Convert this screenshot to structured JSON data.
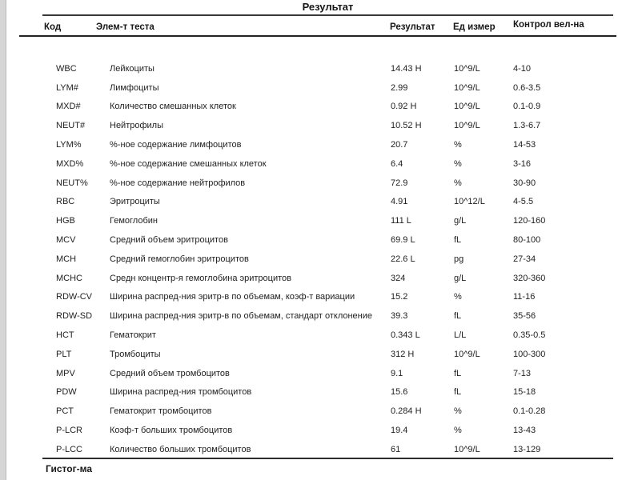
{
  "page": {
    "title": "Результат",
    "footer_section_title": "Гистог-ма"
  },
  "colors": {
    "page_bg": "#ffffff",
    "edge_strip": "#d6d6d6",
    "text": "#222222",
    "rule": "#2d2d2d"
  },
  "table": {
    "headers": {
      "code": "Код",
      "name": "Элем-т теста",
      "result": "Результат",
      "unit": "Ед измер",
      "range": "Контрол вел-на"
    },
    "rows": [
      {
        "code": "WBC",
        "name": "Лейкоциты",
        "result": "14.43 H",
        "unit": "10^9/L",
        "range": "4-10"
      },
      {
        "code": "LYM#",
        "name": "Лимфоциты",
        "result": "2.99",
        "unit": "10^9/L",
        "range": "0.6-3.5"
      },
      {
        "code": "MXD#",
        "name": "Количество смешанных клеток",
        "result": "0.92 H",
        "unit": "10^9/L",
        "range": "0.1-0.9"
      },
      {
        "code": "NEUT#",
        "name": "Нейтрофилы",
        "result": "10.52 H",
        "unit": "10^9/L",
        "range": "1.3-6.7"
      },
      {
        "code": "LYM%",
        "name": "%-ное содержание лимфоцитов",
        "result": "20.7",
        "unit": "%",
        "range": "14-53"
      },
      {
        "code": "MXD%",
        "name": "%-ное содержание смешанных клеток",
        "result": "6.4",
        "unit": "%",
        "range": "3-16"
      },
      {
        "code": "NEUT%",
        "name": "%-ное содержание нейтрофилов",
        "result": "72.9",
        "unit": "%",
        "range": "30-90"
      },
      {
        "code": "RBC",
        "name": "Эритроциты",
        "result": "4.91",
        "unit": "10^12/L",
        "range": "4-5.5"
      },
      {
        "code": "HGB",
        "name": "Гемоглобин",
        "result": "111 L",
        "unit": "g/L",
        "range": "120-160"
      },
      {
        "code": "MCV",
        "name": "Средний объем эритроцитов",
        "result": "69.9 L",
        "unit": "fL",
        "range": "80-100"
      },
      {
        "code": "MCH",
        "name": "Средний гемоглобин эритроцитов",
        "result": "22.6 L",
        "unit": "pg",
        "range": "27-34"
      },
      {
        "code": "MCHC",
        "name": "Средн концентр-я гемоглобина эритроцитов",
        "result": "324",
        "unit": "g/L",
        "range": "320-360"
      },
      {
        "code": "RDW-CV",
        "name": "Ширина распред-ния эритр-в по объемам, коэф-т вариации",
        "result": "15.2",
        "unit": "%",
        "range": "11-16"
      },
      {
        "code": "RDW-SD",
        "name": "Ширина распред-ния эритр-в по объемам, стандарт отклонение",
        "result": "39.3",
        "unit": "fL",
        "range": "35-56"
      },
      {
        "code": "HCT",
        "name": "Гематокрит",
        "result": "0.343 L",
        "unit": "L/L",
        "range": "0.35-0.5"
      },
      {
        "code": "PLT",
        "name": "Тромбоциты",
        "result": "312 H",
        "unit": "10^9/L",
        "range": "100-300"
      },
      {
        "code": "MPV",
        "name": "Средний объем тромбоцитов",
        "result": "9.1",
        "unit": "fL",
        "range": "7-13"
      },
      {
        "code": "PDW",
        "name": "Ширина распред-ния тромбоцитов",
        "result": "15.6",
        "unit": "fL",
        "range": "15-18"
      },
      {
        "code": "PCT",
        "name": "Гематокрит тромбоцитов",
        "result": "0.284 H",
        "unit": "%",
        "range": "0.1-0.28"
      },
      {
        "code": "P-LCR",
        "name": "Коэф-т больших тромбоцитов",
        "result": "19.4",
        "unit": "%",
        "range": "13-43"
      },
      {
        "code": "P-LCC",
        "name": "Количество больших тромбоцитов",
        "result": "61",
        "unit": "10^9/L",
        "range": "13-129"
      }
    ]
  }
}
